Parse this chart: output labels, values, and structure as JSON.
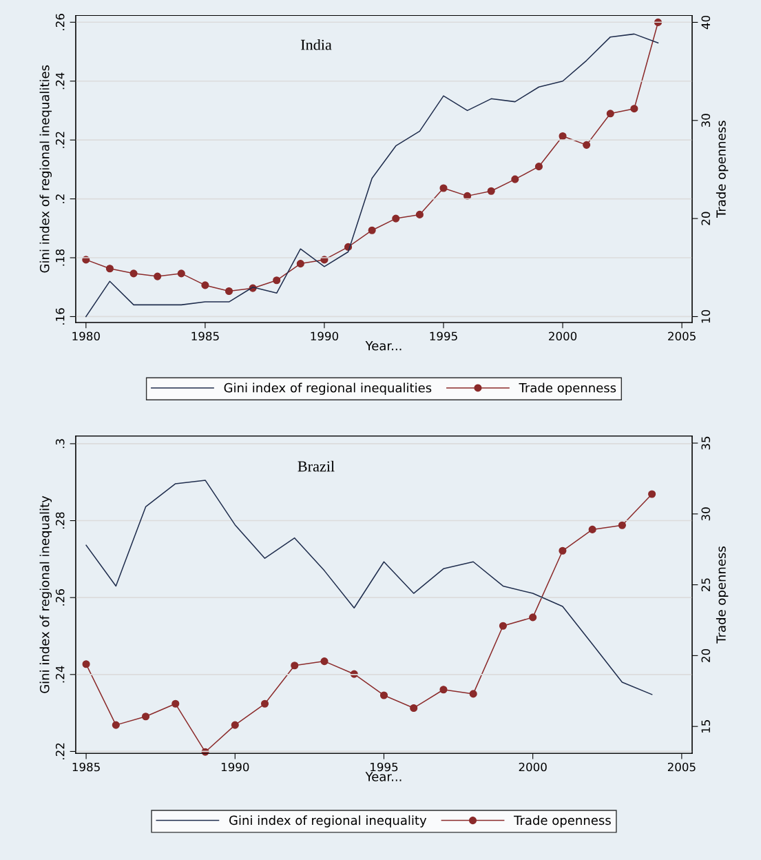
{
  "chart_data": [
    {
      "type": "line",
      "title": "India",
      "xlabel": "Year...",
      "ylabel": "Gini index of regional inequalities",
      "y2label": "Trade openness",
      "x": [
        1980,
        1981,
        1982,
        1983,
        1984,
        1985,
        1986,
        1987,
        1988,
        1989,
        1990,
        1991,
        1992,
        1993,
        1994,
        1995,
        1996,
        1997,
        1998,
        1999,
        2000,
        2001,
        2002,
        2003,
        2004
      ],
      "series": [
        {
          "name": "Gini index of regional inequalities",
          "color": "#1f2d4d",
          "marker": "none",
          "values": [
            0.16,
            0.172,
            0.164,
            0.164,
            0.164,
            0.165,
            0.165,
            0.17,
            0.168,
            0.183,
            0.177,
            0.182,
            0.207,
            0.218,
            0.223,
            0.235,
            0.23,
            0.234,
            0.233,
            0.238,
            0.24,
            0.247,
            0.255,
            0.256,
            0.253
          ]
        },
        {
          "name": "Trade openness",
          "color": "#8b2a2a",
          "marker": "circle",
          "axis": "y2",
          "values": [
            15.8,
            14.9,
            14.4,
            14.1,
            14.4,
            13.2,
            12.6,
            12.9,
            13.7,
            15.4,
            15.8,
            17.1,
            18.8,
            20.0,
            20.4,
            23.1,
            22.3,
            22.8,
            24.0,
            25.3,
            28.4,
            27.5,
            30.7,
            31.2,
            40.0
          ]
        }
      ],
      "xlim": [
        1979.57,
        2005.43
      ],
      "xticks": [
        1980,
        1985,
        1990,
        1995,
        2000,
        2005
      ],
      "ylim": [
        0.158,
        0.2623
      ],
      "yticks": [
        {
          "value": 0.16,
          "label": ".16"
        },
        {
          "value": 0.18,
          "label": ".18"
        },
        {
          "value": 0.2,
          "label": ".2"
        },
        {
          "value": 0.22,
          "label": ".22"
        },
        {
          "value": 0.24,
          "label": ".24"
        },
        {
          "value": 0.26,
          "label": ".26"
        }
      ],
      "y2lim": [
        9.4,
        40.7
      ],
      "y2ticks": [
        10,
        20,
        30,
        40
      ],
      "grid": "y",
      "legend": "bottom"
    },
    {
      "type": "line",
      "title": "Brazil",
      "xlabel": "Year...",
      "ylabel": "Gini index of regional inequality",
      "y2label": "Trade openness",
      "x": [
        1985,
        1986,
        1987,
        1988,
        1989,
        1990,
        1991,
        1992,
        1993,
        1994,
        1995,
        1996,
        1997,
        1998,
        1999,
        2000,
        2001,
        2002,
        2003,
        2004
      ],
      "series": [
        {
          "name": "Gini index of regional inequality",
          "color": "#1f2d4d",
          "marker": "none",
          "values": [
            0.2736,
            0.263,
            0.2836,
            0.2896,
            0.2905,
            0.2789,
            0.2702,
            0.2755,
            0.267,
            0.2573,
            0.2693,
            0.2611,
            0.2675,
            0.2693,
            0.263,
            0.2611,
            0.2577,
            0.2479,
            0.238,
            0.2348
          ]
        },
        {
          "name": "Trade openness",
          "color": "#8b2a2a",
          "marker": "circle",
          "axis": "y2",
          "values": [
            19.4,
            15.1,
            15.7,
            16.6,
            13.2,
            15.1,
            16.6,
            19.3,
            19.6,
            18.7,
            17.2,
            16.3,
            17.6,
            17.3,
            22.1,
            22.7,
            27.4,
            28.9,
            29.2,
            31.4
          ]
        }
      ],
      "xlim": [
        1984.65,
        2005.35
      ],
      "xticks": [
        1985,
        1990,
        1995,
        2000,
        2005
      ],
      "ylim": [
        0.2195,
        0.302
      ],
      "yticks": [
        {
          "value": 0.22,
          "label": ".22"
        },
        {
          "value": 0.24,
          "label": ".24"
        },
        {
          "value": 0.26,
          "label": ".26"
        },
        {
          "value": 0.28,
          "label": ".28"
        },
        {
          "value": 0.3,
          "label": ".3"
        }
      ],
      "y2lim": [
        13.1,
        35.5
      ],
      "y2ticks": [
        15,
        20,
        25,
        30,
        35
      ],
      "grid": "y",
      "legend": "bottom"
    }
  ]
}
